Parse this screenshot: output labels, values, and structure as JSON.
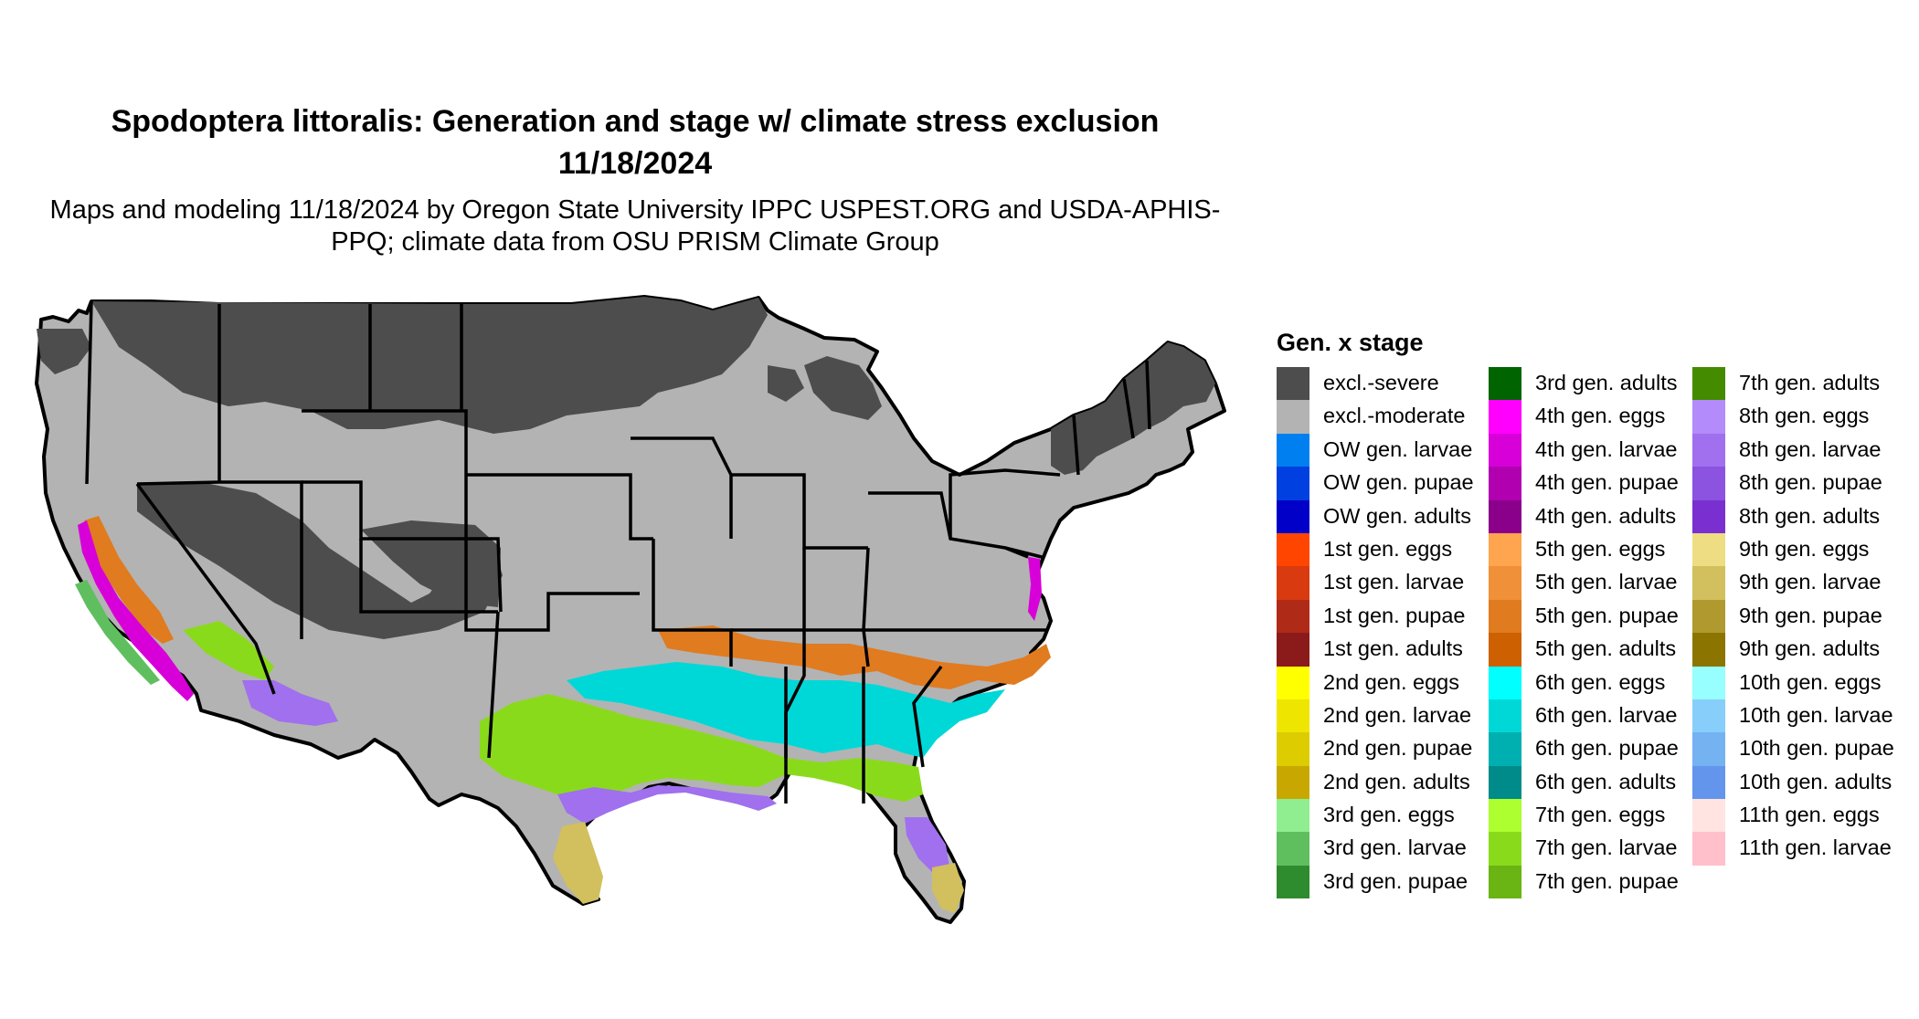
{
  "title": "Spodoptera littoralis: Generation and stage w/ climate stress exclusion 11/18/2024",
  "subtitle": "Maps and modeling 11/18/2024 by Oregon State University IPPC USPEST.ORG and USDA-APHIS-PPQ; climate data from OSU PRISM Climate Group",
  "legend": {
    "title": "Gen. x stage",
    "columns": [
      [
        {
          "label": "excl.-severe",
          "color": "#4d4d4d"
        },
        {
          "label": "excl.-moderate",
          "color": "#b3b3b3"
        },
        {
          "label": "OW gen. larvae",
          "color": "#0080f0"
        },
        {
          "label": "OW gen. pupae",
          "color": "#0040e0"
        },
        {
          "label": "OW gen. adults",
          "color": "#0000c8"
        },
        {
          "label": "1st gen. eggs",
          "color": "#ff4500"
        },
        {
          "label": "1st gen. larvae",
          "color": "#d93a10"
        },
        {
          "label": "1st gen. pupae",
          "color": "#b02a18"
        },
        {
          "label": "1st gen. adults",
          "color": "#8b1a1a"
        },
        {
          "label": "2nd gen. eggs",
          "color": "#ffff00"
        },
        {
          "label": "2nd gen. larvae",
          "color": "#eee600"
        },
        {
          "label": "2nd gen. pupae",
          "color": "#ddcc00"
        },
        {
          "label": "2nd gen. adults",
          "color": "#c8a800"
        },
        {
          "label": "3rd gen. eggs",
          "color": "#90ee90"
        },
        {
          "label": "3rd gen. larvae",
          "color": "#5fbf5f"
        },
        {
          "label": "3rd gen. pupae",
          "color": "#2e8b2e"
        }
      ],
      [
        {
          "label": "3rd gen. adults",
          "color": "#006400"
        },
        {
          "label": "4th gen. eggs",
          "color": "#ff00ff"
        },
        {
          "label": "4th gen. larvae",
          "color": "#d800d8"
        },
        {
          "label": "4th gen. pupae",
          "color": "#b000b0"
        },
        {
          "label": "4th gen. adults",
          "color": "#8b008b"
        },
        {
          "label": "5th gen. eggs",
          "color": "#ffa54f"
        },
        {
          "label": "5th gen. larvae",
          "color": "#f09038"
        },
        {
          "label": "5th gen. pupae",
          "color": "#e07b20"
        },
        {
          "label": "5th gen. adults",
          "color": "#cd6000"
        },
        {
          "label": "6th gen. eggs",
          "color": "#00ffff"
        },
        {
          "label": "6th gen. larvae",
          "color": "#00d8d8"
        },
        {
          "label": "6th gen. pupae",
          "color": "#00b0b0"
        },
        {
          "label": "6th gen. adults",
          "color": "#008b8b"
        },
        {
          "label": "7th gen. eggs",
          "color": "#adff2f"
        },
        {
          "label": "7th gen. larvae",
          "color": "#8ada1c"
        },
        {
          "label": "7th gen. pupae",
          "color": "#6ab414"
        }
      ],
      [
        {
          "label": "7th gen. adults",
          "color": "#458b00"
        },
        {
          "label": "8th gen. eggs",
          "color": "#b38bfa"
        },
        {
          "label": "8th gen. larvae",
          "color": "#a070ee"
        },
        {
          "label": "8th gen. pupae",
          "color": "#8c52e0"
        },
        {
          "label": "8th gen. adults",
          "color": "#7a30d0"
        },
        {
          "label": "9th gen. eggs",
          "color": "#eedd82"
        },
        {
          "label": "9th gen. larvae",
          "color": "#d2bf5e"
        },
        {
          "label": "9th gen. pupae",
          "color": "#b09a30"
        },
        {
          "label": "9th gen. adults",
          "color": "#8b7500"
        },
        {
          "label": "10th gen. eggs",
          "color": "#97ffff"
        },
        {
          "label": "10th gen. larvae",
          "color": "#87cefa"
        },
        {
          "label": "10th gen. pupae",
          "color": "#74b2f2"
        },
        {
          "label": "10th gen. adults",
          "color": "#6495ed"
        },
        {
          "label": "11th gen. eggs",
          "color": "#ffe4e1"
        },
        {
          "label": "11th gen. larvae",
          "color": "#ffc0cb"
        }
      ]
    ]
  }
}
